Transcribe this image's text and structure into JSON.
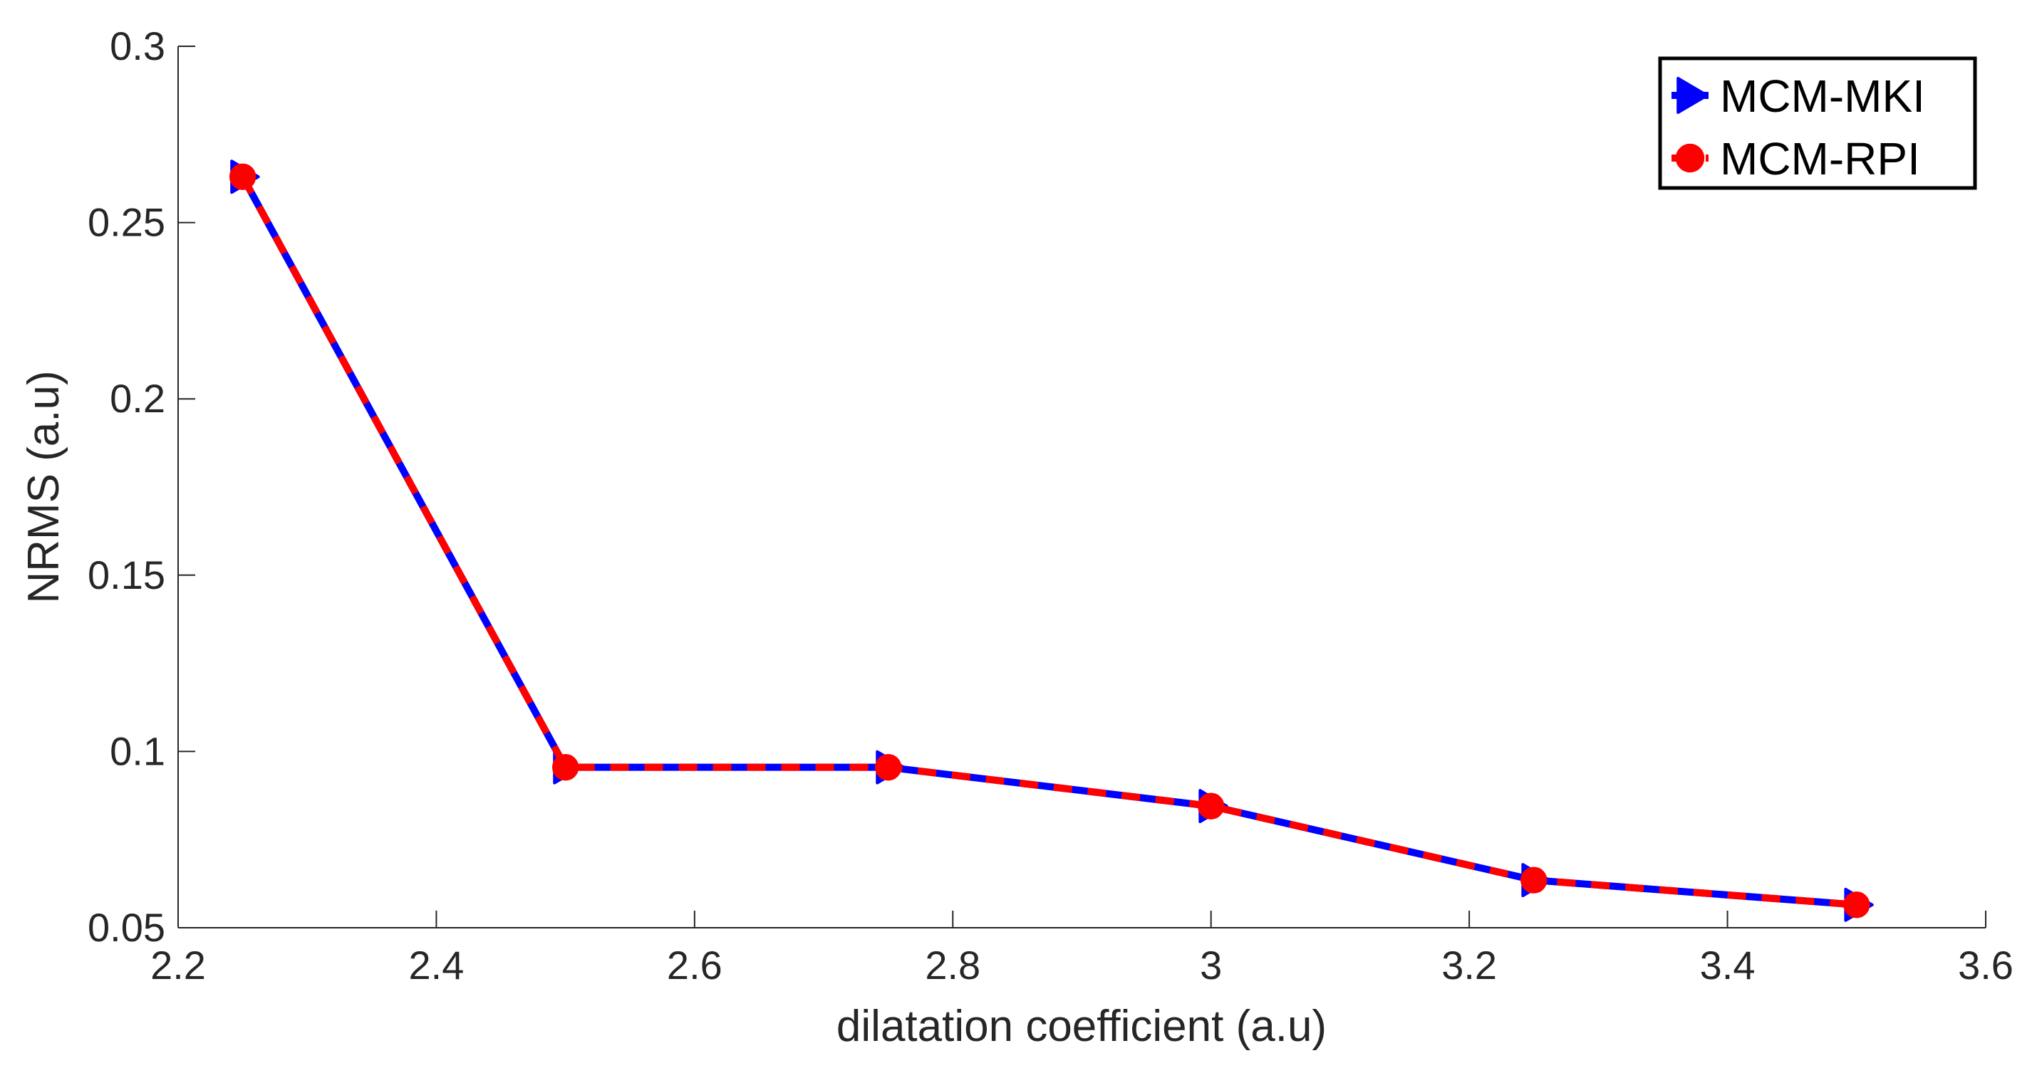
{
  "chart_data": {
    "type": "line",
    "title": "",
    "xlabel": "dilatation coefficient (a.u)",
    "ylabel": "NRMS (a.u)",
    "xlim": [
      2.2,
      3.6
    ],
    "ylim": [
      0.05,
      0.3
    ],
    "xticks": [
      "2.2",
      "2.4",
      "2.6",
      "2.8",
      "3",
      "3.2",
      "3.4",
      "3.6"
    ],
    "yticks": [
      "0.05",
      "0.1",
      "0.15",
      "0.2",
      "0.25",
      "0.3"
    ],
    "grid": false,
    "legend_position": "top-right",
    "x": [
      2.25,
      2.5,
      2.75,
      3.0,
      3.25,
      3.5
    ],
    "series": [
      {
        "name": "MCM-MKI",
        "values": [
          0.263,
          0.0955,
          0.0955,
          0.0845,
          0.0635,
          0.0565
        ],
        "color": "#0000ff",
        "line_style": "solid",
        "marker": "right-triangle"
      },
      {
        "name": "MCM-RPI",
        "values": [
          0.263,
          0.0955,
          0.0955,
          0.0845,
          0.0635,
          0.0565
        ],
        "color": "#ff0000",
        "line_style": "dashed",
        "marker": "circle"
      }
    ]
  }
}
